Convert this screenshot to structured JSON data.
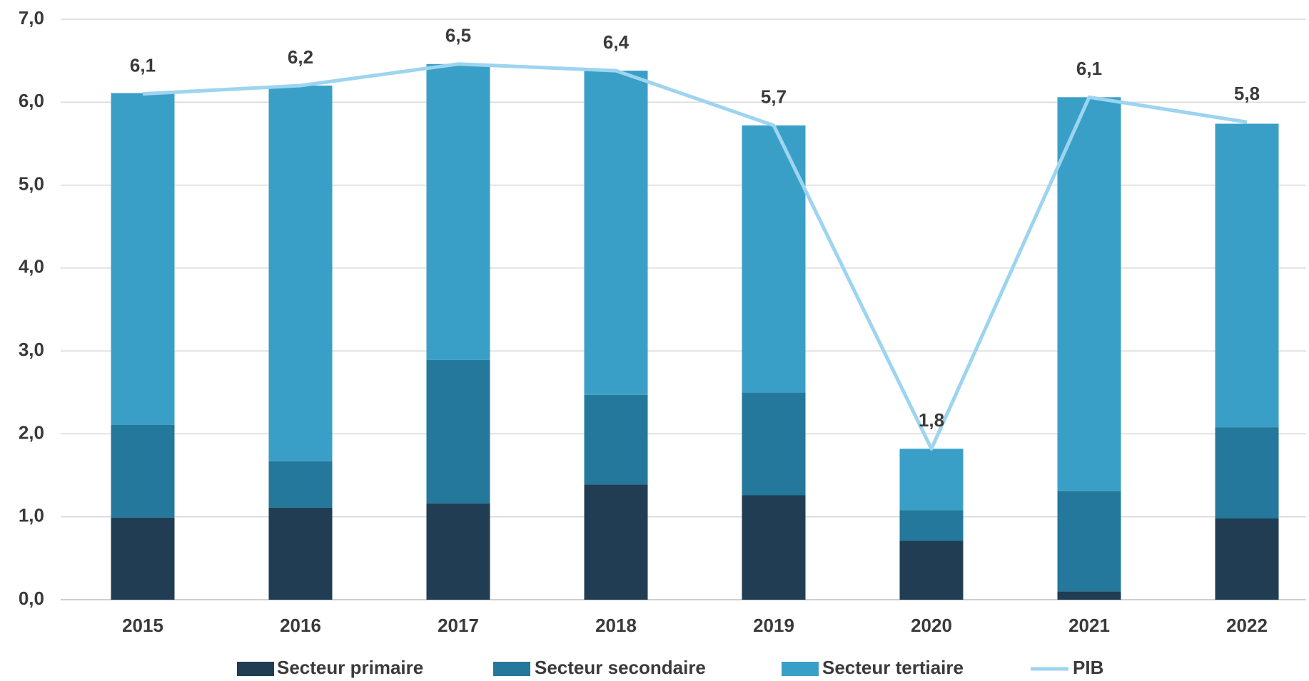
{
  "chart_data": {
    "type": "bar",
    "categories": [
      "2015",
      "2016",
      "2017",
      "2018",
      "2019",
      "2020",
      "2021",
      "2022"
    ],
    "series": [
      {
        "name": "Secteur primaire",
        "color": "#203d54",
        "values": [
          0.99,
          1.11,
          1.16,
          1.39,
          1.26,
          0.71,
          0.1,
          0.98
        ]
      },
      {
        "name": "Secteur secondaire",
        "color": "#23789b",
        "values": [
          1.12,
          0.56,
          1.73,
          1.08,
          1.24,
          0.37,
          1.21,
          1.1
        ]
      },
      {
        "name": "Secteur tertiaire",
        "color": "#3a9fc7",
        "values": [
          4.0,
          4.53,
          3.57,
          3.91,
          3.22,
          0.74,
          4.75,
          3.66
        ]
      },
      {
        "name": "PIB",
        "type": "line",
        "color": "#9dd4ef",
        "values": [
          6.1,
          6.2,
          6.46,
          6.38,
          5.72,
          1.82,
          6.06,
          5.76
        ],
        "value_labels": [
          "6,1",
          "6,2",
          "6,5",
          "6,4",
          "5,7",
          "1,8",
          "6,1",
          "5,8"
        ]
      }
    ],
    "stacked": true,
    "ylim": [
      0,
      7
    ],
    "yticks": [
      {
        "value": 0,
        "label": "0,0"
      },
      {
        "value": 1,
        "label": "1,0"
      },
      {
        "value": 2,
        "label": "2,0"
      },
      {
        "value": 3,
        "label": "3,0"
      },
      {
        "value": 4,
        "label": "4,0"
      },
      {
        "value": 5,
        "label": "5,0"
      },
      {
        "value": 6,
        "label": "6,0"
      },
      {
        "value": 7,
        "label": "7,0"
      }
    ],
    "grid": true,
    "legend": "bottom"
  }
}
